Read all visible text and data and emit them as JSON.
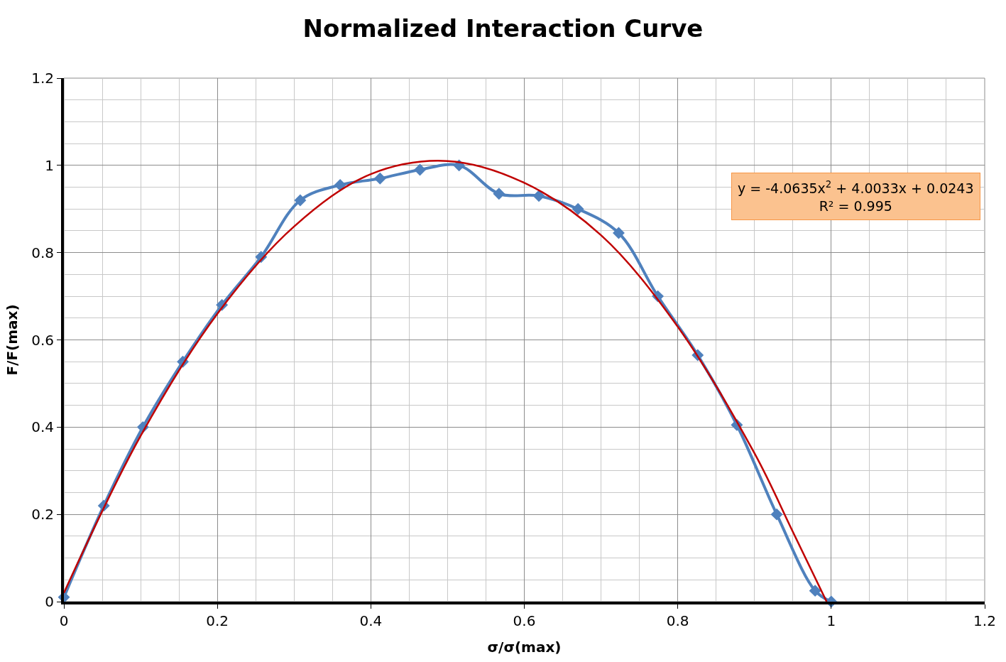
{
  "chart_data": {
    "type": "line",
    "title": "Normalized Interaction Curve",
    "xlabel": "σ/σ(max)",
    "ylabel": "F/F(max)",
    "xlim": [
      0,
      1.2
    ],
    "xticks": [
      0,
      0.2,
      0.4,
      0.6,
      0.8,
      1,
      1.2
    ],
    "ylim": [
      0,
      1.2
    ],
    "yticks": [
      0,
      0.2,
      0.4,
      0.6,
      0.8,
      1,
      1.2
    ],
    "grid": true,
    "series": [
      {
        "color": "#4f81bd",
        "marker": "diamond",
        "x": [
          0,
          0.052,
          0.103,
          0.155,
          0.206,
          0.257,
          0.308,
          0.36,
          0.412,
          0.464,
          0.515,
          0.567,
          0.619,
          0.67,
          0.723,
          0.774,
          0.826,
          0.877,
          0.929,
          0.979,
          1.0
        ],
        "values": [
          0.01,
          0.22,
          0.4,
          0.55,
          0.68,
          0.79,
          0.92,
          0.955,
          0.97,
          0.99,
          1.0,
          0.935,
          0.93,
          0.9,
          0.845,
          0.7,
          0.565,
          0.405,
          0.2,
          0.025,
          0.0
        ]
      },
      {
        "color": "#c00000",
        "marker": "none",
        "x": [
          0,
          0.1,
          0.2,
          0.3,
          0.4,
          0.5,
          0.6,
          0.7,
          0.8,
          0.9,
          0.95,
          0.994
        ],
        "values": [
          0.02,
          0.38,
          0.66,
          0.86,
          0.98,
          1.01,
          0.96,
          0.84,
          0.63,
          0.34,
          0.16,
          0.0
        ]
      }
    ],
    "annotations": [
      "y = -4.0635x$^{2}$ + 4.0033x + 0.0243",
      "R² = 0.995"
    ]
  }
}
